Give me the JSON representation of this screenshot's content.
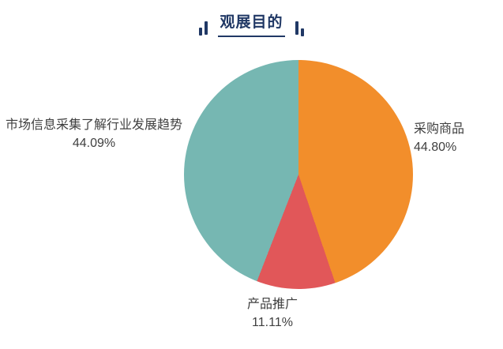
{
  "header": {
    "title": "观展目的"
  },
  "colors": {
    "navy": "#203865",
    "orange": "#F28E2B",
    "red": "#E15759",
    "teal": "#76B7B2",
    "label_text": "#3F3F3F",
    "background": "#FFFFFF"
  },
  "chart_data": {
    "type": "pie",
    "title": "观展目的",
    "start_angle_deg": 0,
    "direction": "clockwise",
    "legend_position": "none",
    "slices": [
      {
        "label": "采购商品",
        "value": 44.8,
        "value_text": "44.80%",
        "color": "#F28E2B",
        "label_side": "right"
      },
      {
        "label": "产品推广",
        "value": 11.11,
        "value_text": "11.11%",
        "color": "#E15759",
        "label_side": "bottom"
      },
      {
        "label": "市场信息采集了解行业发展趋势",
        "value": 44.09,
        "value_text": "44.09%",
        "color": "#76B7B2",
        "label_side": "left"
      }
    ]
  }
}
